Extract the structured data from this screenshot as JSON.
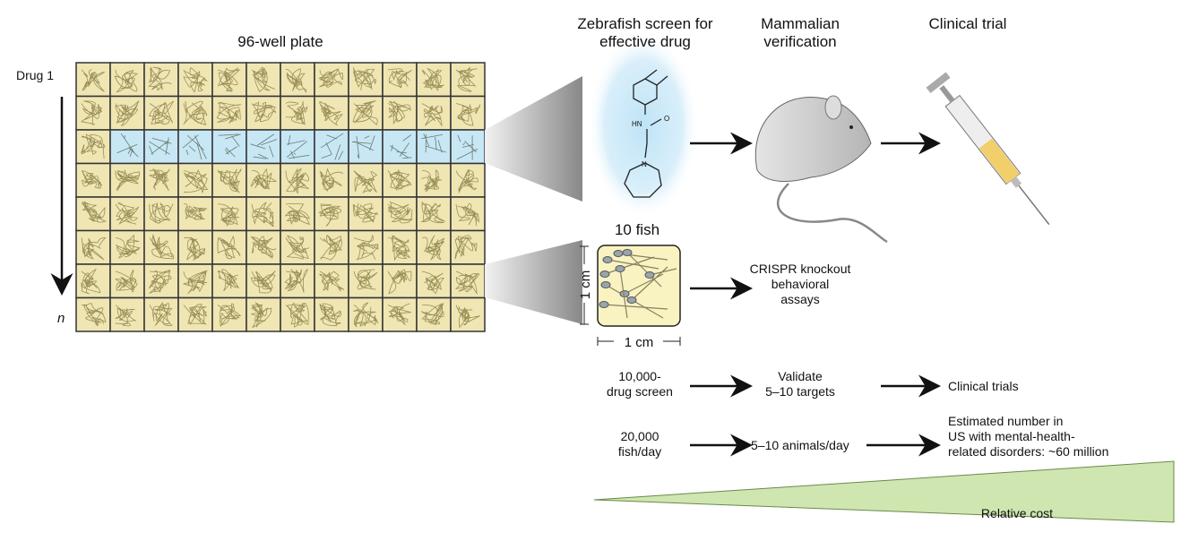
{
  "plate": {
    "title": "96-well plate",
    "drug_label": "Drug 1",
    "n_label": "n",
    "rows": 8,
    "cols": 12,
    "highlighted_row": 3
  },
  "columns": {
    "zebrafish": [
      "Zebrafish screen for",
      "effective drug"
    ],
    "mammalian": [
      "Mammalian",
      "verification"
    ],
    "clinical": "Clinical trial"
  },
  "molecule": {
    "nh": "HN",
    "o": "O",
    "n": "N"
  },
  "fish": {
    "title": "10 fish",
    "height": "1 cm",
    "width": "1 cm"
  },
  "crispr": [
    "CRISPR knockout",
    "behavioral",
    "assays"
  ],
  "row1": {
    "a": [
      "10,000-",
      "drug screen"
    ],
    "b": [
      "Validate",
      "5–10 targets"
    ],
    "c": "Clinical trials"
  },
  "row2": {
    "a": [
      "20,000",
      "fish/day"
    ],
    "b": "5–10 animals/day",
    "c": [
      "Estimated number in",
      "US with mental-health-",
      "related disorders: ~60 million"
    ]
  },
  "cost_label": "Relative cost",
  "colors": {
    "well": "#efe6b4",
    "highlight": "#c7e7f5",
    "cost": "#cfe6b0",
    "glow": "#bfe4f7"
  }
}
